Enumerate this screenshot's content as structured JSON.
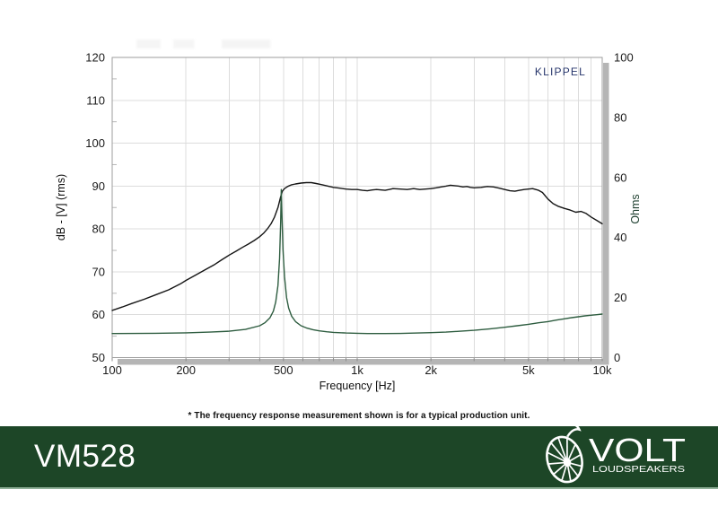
{
  "chart_data": {
    "type": "line",
    "title": "",
    "annotation": "KLIPPEL",
    "grid": true,
    "x_axis": {
      "label": "Frequency [Hz]",
      "scale": "log",
      "min": 100,
      "max": 10000,
      "ticks": [
        {
          "v": 100,
          "label": "100"
        },
        {
          "v": 200,
          "label": "200"
        },
        {
          "v": 500,
          "label": "500"
        },
        {
          "v": 1000,
          "label": "1k"
        },
        {
          "v": 2000,
          "label": "2k"
        },
        {
          "v": 5000,
          "label": "5k"
        },
        {
          "v": 10000,
          "label": "10k"
        }
      ]
    },
    "y_left": {
      "label": "dB - [V] (rms)",
      "min": 50,
      "max": 120,
      "ticks": [
        120,
        110,
        100,
        90,
        80,
        70,
        60,
        50
      ],
      "minor_step": 5
    },
    "y_right": {
      "label": "Ohms",
      "min": 0,
      "max": 100,
      "ticks": [
        100,
        80,
        60,
        40,
        20,
        0
      ]
    },
    "series": [
      {
        "name": "frequency-response",
        "axis": "left",
        "unit": "dB",
        "color": "#141414",
        "points": [
          [
            100,
            61.0
          ],
          [
            110,
            61.8
          ],
          [
            120,
            62.6
          ],
          [
            135,
            63.6
          ],
          [
            150,
            64.6
          ],
          [
            170,
            65.8
          ],
          [
            190,
            67.2
          ],
          [
            200,
            68.0
          ],
          [
            220,
            69.3
          ],
          [
            240,
            70.5
          ],
          [
            260,
            71.6
          ],
          [
            280,
            72.8
          ],
          [
            300,
            73.9
          ],
          [
            320,
            74.8
          ],
          [
            340,
            75.7
          ],
          [
            360,
            76.5
          ],
          [
            380,
            77.3
          ],
          [
            400,
            78.2
          ],
          [
            415,
            79.0
          ],
          [
            430,
            80.0
          ],
          [
            445,
            81.2
          ],
          [
            460,
            82.8
          ],
          [
            475,
            85.0
          ],
          [
            487,
            87.5
          ],
          [
            495,
            88.8
          ],
          [
            505,
            89.4
          ],
          [
            520,
            89.9
          ],
          [
            540,
            90.3
          ],
          [
            560,
            90.5
          ],
          [
            590,
            90.7
          ],
          [
            620,
            90.8
          ],
          [
            650,
            90.8
          ],
          [
            680,
            90.6
          ],
          [
            720,
            90.3
          ],
          [
            760,
            90.0
          ],
          [
            800,
            89.7
          ],
          [
            850,
            89.5
          ],
          [
            900,
            89.3
          ],
          [
            950,
            89.2
          ],
          [
            1000,
            89.2
          ],
          [
            1050,
            89.0
          ],
          [
            1100,
            88.9
          ],
          [
            1150,
            89.1
          ],
          [
            1200,
            89.2
          ],
          [
            1300,
            89.0
          ],
          [
            1350,
            89.2
          ],
          [
            1400,
            89.4
          ],
          [
            1500,
            89.3
          ],
          [
            1600,
            89.2
          ],
          [
            1700,
            89.4
          ],
          [
            1800,
            89.2
          ],
          [
            1900,
            89.3
          ],
          [
            2000,
            89.4
          ],
          [
            2100,
            89.6
          ],
          [
            2200,
            89.8
          ],
          [
            2300,
            90.0
          ],
          [
            2400,
            90.2
          ],
          [
            2500,
            90.1
          ],
          [
            2600,
            90.0
          ],
          [
            2700,
            89.8
          ],
          [
            2800,
            89.9
          ],
          [
            2900,
            89.7
          ],
          [
            3000,
            89.6
          ],
          [
            3200,
            89.7
          ],
          [
            3400,
            89.9
          ],
          [
            3600,
            89.8
          ],
          [
            3800,
            89.5
          ],
          [
            4000,
            89.2
          ],
          [
            4200,
            88.9
          ],
          [
            4400,
            88.8
          ],
          [
            4600,
            89.0
          ],
          [
            4800,
            89.2
          ],
          [
            5000,
            89.3
          ],
          [
            5200,
            89.4
          ],
          [
            5500,
            89.0
          ],
          [
            5700,
            88.5
          ],
          [
            6000,
            87.0
          ],
          [
            6300,
            85.9
          ],
          [
            6600,
            85.3
          ],
          [
            7000,
            84.8
          ],
          [
            7400,
            84.4
          ],
          [
            7800,
            83.9
          ],
          [
            8200,
            84.1
          ],
          [
            8600,
            83.6
          ],
          [
            9000,
            82.8
          ],
          [
            9500,
            82.0
          ],
          [
            10000,
            81.2
          ]
        ]
      },
      {
        "name": "impedance",
        "axis": "right",
        "unit": "Ohms",
        "color": "#2e5d40",
        "points": [
          [
            100,
            8.0
          ],
          [
            150,
            8.1
          ],
          [
            200,
            8.25
          ],
          [
            250,
            8.5
          ],
          [
            300,
            8.8
          ],
          [
            350,
            9.4
          ],
          [
            400,
            10.6
          ],
          [
            420,
            11.6
          ],
          [
            440,
            13.2
          ],
          [
            455,
            15.5
          ],
          [
            465,
            18.5
          ],
          [
            475,
            24
          ],
          [
            482,
            33
          ],
          [
            487,
            45
          ],
          [
            490,
            56
          ],
          [
            493,
            48
          ],
          [
            498,
            36
          ],
          [
            505,
            27
          ],
          [
            515,
            20
          ],
          [
            525,
            16.5
          ],
          [
            540,
            13.8
          ],
          [
            560,
            12.0
          ],
          [
            590,
            10.6
          ],
          [
            620,
            9.9
          ],
          [
            660,
            9.3
          ],
          [
            700,
            8.9
          ],
          [
            750,
            8.6
          ],
          [
            800,
            8.4
          ],
          [
            900,
            8.2
          ],
          [
            1000,
            8.1
          ],
          [
            1100,
            8.0
          ],
          [
            1300,
            8.0
          ],
          [
            1500,
            8.05
          ],
          [
            1700,
            8.15
          ],
          [
            2000,
            8.3
          ],
          [
            2300,
            8.5
          ],
          [
            2600,
            8.75
          ],
          [
            3000,
            9.1
          ],
          [
            3500,
            9.6
          ],
          [
            4000,
            10.1
          ],
          [
            4500,
            10.6
          ],
          [
            5000,
            11.1
          ],
          [
            5500,
            11.6
          ],
          [
            6000,
            12.0
          ],
          [
            6500,
            12.5
          ],
          [
            7000,
            12.9
          ],
          [
            7500,
            13.3
          ],
          [
            8000,
            13.6
          ],
          [
            8500,
            13.9
          ],
          [
            9000,
            14.1
          ],
          [
            9500,
            14.3
          ],
          [
            10000,
            14.5
          ]
        ]
      }
    ]
  },
  "footnote": "* The frequency response measurement shown is for a typical production unit.",
  "footer": {
    "model": "VM528",
    "brand": "VOLT",
    "brand_sub": "LOUDSPEAKERS"
  },
  "colors": {
    "footer_green": "#1d4627",
    "footer_edge": "#8fb098",
    "klippel_navy": "#26356b",
    "grid": "#dcdcdc",
    "shadow": "#b5b5b5",
    "axis_border": "#9e9e9e",
    "tick_text": "#1b1b1b"
  }
}
